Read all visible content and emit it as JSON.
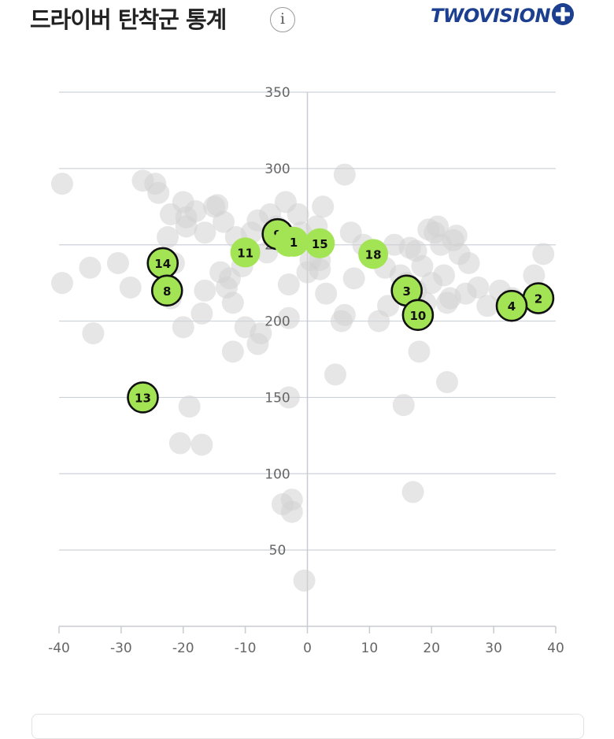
{
  "header": {
    "title": "드라이버 탄착군 통계",
    "info_icon": "info-icon",
    "info_glyph": "i",
    "logo_text": "TWOVISION",
    "logo_plus_label": "PLUS"
  },
  "chart_data": {
    "type": "scatter",
    "title": "",
    "xlabel": "",
    "ylabel": "",
    "xlim": [
      -40,
      40
    ],
    "ylim": [
      0,
      350
    ],
    "x_ticks": [
      -40,
      -30,
      -20,
      -10,
      0,
      10,
      20,
      30,
      40
    ],
    "y_ticks": [
      50,
      100,
      150,
      200,
      250,
      300,
      350
    ],
    "x_tick_labels": [
      "-40",
      "-30",
      "-20",
      "-10",
      "0",
      "10",
      "20",
      "30",
      "40"
    ],
    "y_tick_labels": [
      "50",
      "100",
      "150",
      "200",
      "250",
      "300",
      "350"
    ],
    "grid": "horizontal",
    "colors": {
      "highlight": "#a3e455",
      "background_point": "#d2d2d2",
      "ring": "#111111"
    },
    "highlighted_points": [
      {
        "label": "9",
        "x": -4.8,
        "y": 257,
        "outlined": true
      },
      {
        "label": "17",
        "x": -3.0,
        "y": 252,
        "outlined": false
      },
      {
        "label": "1",
        "x": -2.2,
        "y": 252,
        "outlined": false
      },
      {
        "label": "15",
        "x": 2.0,
        "y": 251,
        "outlined": false
      },
      {
        "label": "11",
        "x": -10.0,
        "y": 245,
        "outlined": false
      },
      {
        "label": "18",
        "x": 10.6,
        "y": 244,
        "outlined": false
      },
      {
        "label": "14",
        "x": -23.3,
        "y": 238,
        "outlined": true
      },
      {
        "label": "8",
        "x": -22.6,
        "y": 220,
        "outlined": true
      },
      {
        "label": "3",
        "x": 16.0,
        "y": 220,
        "outlined": true
      },
      {
        "label": "2",
        "x": 37.2,
        "y": 215,
        "outlined": true
      },
      {
        "label": "4",
        "x": 32.9,
        "y": 210,
        "outlined": true
      },
      {
        "label": "10",
        "x": 17.8,
        "y": 204,
        "outlined": true
      },
      {
        "label": "13",
        "x": -26.5,
        "y": 150,
        "outlined": true
      }
    ],
    "background_points": [
      [
        -39.5,
        290
      ],
      [
        -39.5,
        225
      ],
      [
        -35,
        235
      ],
      [
        -34.5,
        192
      ],
      [
        -30.5,
        238
      ],
      [
        -28.5,
        222
      ],
      [
        -26.5,
        292
      ],
      [
        -24.5,
        290
      ],
      [
        -24,
        284
      ],
      [
        -22.5,
        255
      ],
      [
        -22,
        270
      ],
      [
        -21.5,
        238
      ],
      [
        -22,
        215
      ],
      [
        -20,
        278
      ],
      [
        -19.5,
        268
      ],
      [
        -19.5,
        262
      ],
      [
        -18,
        272
      ],
      [
        -19,
        144
      ],
      [
        -20.5,
        120
      ],
      [
        -17,
        119
      ],
      [
        -17,
        205
      ],
      [
        -20,
        196
      ],
      [
        -16.5,
        220
      ],
      [
        -16.5,
        258
      ],
      [
        -15,
        275
      ],
      [
        -14.5,
        276
      ],
      [
        -14,
        232
      ],
      [
        -13.5,
        265
      ],
      [
        -13,
        222
      ],
      [
        -12.5,
        228
      ],
      [
        -12,
        212
      ],
      [
        -12,
        180
      ],
      [
        -11.5,
        255
      ],
      [
        -10.5,
        236
      ],
      [
        -10,
        196
      ],
      [
        -9,
        258
      ],
      [
        -8,
        266
      ],
      [
        -8,
        185
      ],
      [
        -7.5,
        192
      ],
      [
        -6.5,
        245
      ],
      [
        -6,
        270
      ],
      [
        -5,
        262
      ],
      [
        -3.5,
        278
      ],
      [
        -3,
        202
      ],
      [
        -3,
        150
      ],
      [
        -3,
        224
      ],
      [
        -2.5,
        83
      ],
      [
        -2.5,
        75
      ],
      [
        -4,
        80
      ],
      [
        -1.5,
        270
      ],
      [
        -1,
        258
      ],
      [
        -0.5,
        30
      ],
      [
        0,
        232
      ],
      [
        0.5,
        240
      ],
      [
        1.5,
        262
      ],
      [
        2,
        240
      ],
      [
        2,
        234
      ],
      [
        2.5,
        275
      ],
      [
        3,
        218
      ],
      [
        4.5,
        165
      ],
      [
        5.5,
        200
      ],
      [
        6,
        204
      ],
      [
        6,
        296
      ],
      [
        7,
        258
      ],
      [
        7.5,
        228
      ],
      [
        9,
        250
      ],
      [
        10,
        245
      ],
      [
        11,
        245
      ],
      [
        11.5,
        200
      ],
      [
        12.5,
        235
      ],
      [
        13,
        210
      ],
      [
        14,
        250
      ],
      [
        15,
        230
      ],
      [
        15.5,
        145
      ],
      [
        16,
        225
      ],
      [
        16.5,
        248
      ],
      [
        17,
        88
      ],
      [
        17.5,
        246
      ],
      [
        17.5,
        220
      ],
      [
        18,
        180
      ],
      [
        18.5,
        236
      ],
      [
        19,
        212
      ],
      [
        19.5,
        260
      ],
      [
        20,
        225
      ],
      [
        20.5,
        258
      ],
      [
        21,
        262
      ],
      [
        21.5,
        250
      ],
      [
        22,
        230
      ],
      [
        22.5,
        160
      ],
      [
        22.5,
        212
      ],
      [
        23,
        215
      ],
      [
        23.5,
        253
      ],
      [
        24,
        256
      ],
      [
        24.5,
        244
      ],
      [
        25.5,
        218
      ],
      [
        26,
        238
      ],
      [
        27.5,
        222
      ],
      [
        29,
        210
      ],
      [
        31,
        220
      ],
      [
        33,
        215
      ],
      [
        36.5,
        230
      ],
      [
        38,
        244
      ]
    ]
  }
}
